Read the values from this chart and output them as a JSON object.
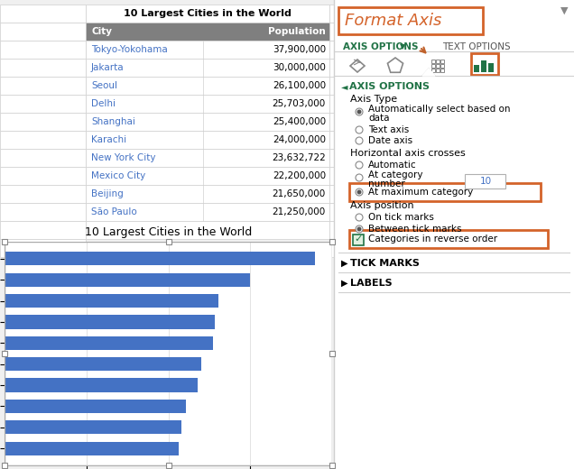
{
  "title": "10 Largest Cities in the World",
  "cities": [
    "Tokyo-Yokohama",
    "Jakarta",
    "Seoul",
    "Delhi",
    "Shanghai",
    "Karachi",
    "New York City",
    "Mexico City",
    "Beijing",
    "São Paulo"
  ],
  "populations": [
    37900000,
    30000000,
    26100000,
    25703000,
    25400000,
    24000000,
    23632722,
    22200000,
    21650000,
    21250000
  ],
  "bar_color": "#4472C4",
  "table_header_color": "#808080",
  "table_city_color": "#4472C4",
  "panel_title": "Format Axis",
  "panel_title_color": "#D4632A",
  "panel_border_color": "#D4632A",
  "axis_options_color": "#217346",
  "highlight_box_color": "#D4632A",
  "bg_color": "#f0f0f0",
  "xlim": [
    0,
    40000000
  ],
  "xticks": [
    0,
    10000000,
    20000000,
    30000000,
    40000000
  ],
  "fig_width": 6.36,
  "fig_height": 5.2,
  "dpi": 100
}
